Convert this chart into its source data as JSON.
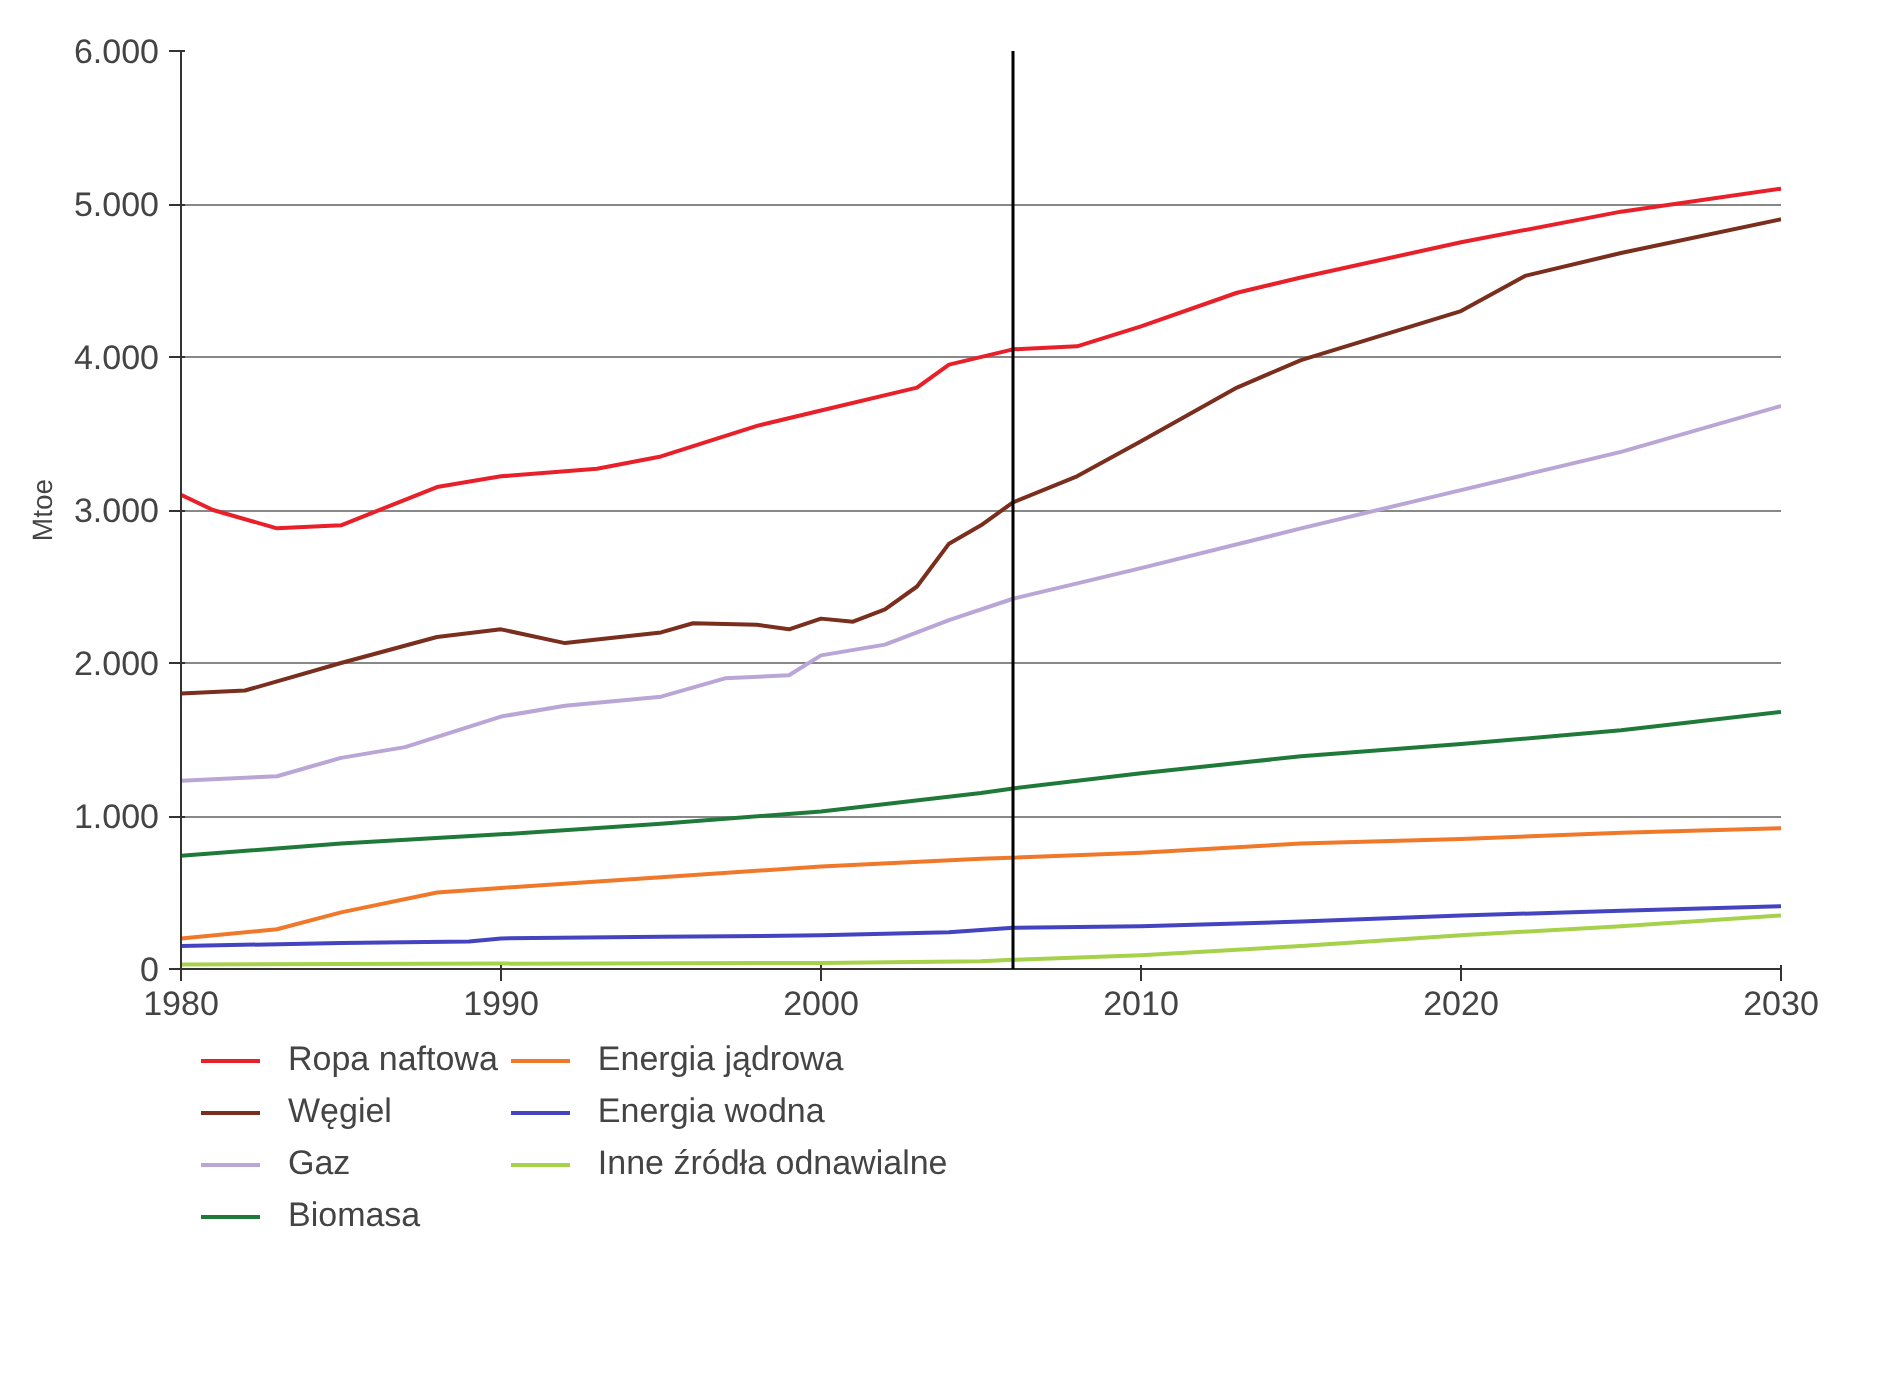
{
  "chart_data": {
    "type": "line",
    "ylabel": "Mtoe",
    "xlim": [
      1980,
      2030
    ],
    "xticks": [
      1980,
      1990,
      2000,
      2010,
      2020,
      2030
    ],
    "ylim": [
      0,
      6000
    ],
    "yticks": [
      {
        "value": 0,
        "label": "0"
      },
      {
        "value": 1000,
        "label": "1.000"
      },
      {
        "value": 2000,
        "label": "2.000"
      },
      {
        "value": 3000,
        "label": "3.000"
      },
      {
        "value": 4000,
        "label": "4.000"
      },
      {
        "value": 5000,
        "label": "5.000"
      },
      {
        "value": 6000,
        "label": "6.000"
      }
    ],
    "grid": "y",
    "legend": "bottom",
    "line_style": "solid",
    "ref_lines": [
      {
        "axis": "x",
        "value": 2006,
        "color": "#000000"
      }
    ],
    "series": [
      {
        "name": "Ropa naftowa",
        "color": "#e8202a",
        "x": [
          1980,
          1981,
          1983,
          1985,
          1988,
          1990,
          1993,
          1995,
          1998,
          2000,
          2003,
          2004,
          2006,
          2008,
          2010,
          2013,
          2015,
          2020,
          2025,
          2030
        ],
        "values": [
          3100,
          3000,
          2880,
          2900,
          3150,
          3220,
          3270,
          3350,
          3550,
          3650,
          3800,
          3950,
          4050,
          4070,
          4200,
          4420,
          4520,
          4750,
          4950,
          5100
        ]
      },
      {
        "name": "Węgiel",
        "color": "#7a2e1e",
        "x": [
          1980,
          1982,
          1985,
          1988,
          1990,
          1992,
          1995,
          1996,
          1998,
          1999,
          2000,
          2001,
          2002,
          2003,
          2004,
          2005,
          2006,
          2008,
          2010,
          2013,
          2015,
          2020,
          2022,
          2025,
          2030
        ],
        "values": [
          1800,
          1820,
          2000,
          2170,
          2220,
          2130,
          2200,
          2260,
          2250,
          2220,
          2290,
          2270,
          2350,
          2500,
          2780,
          2900,
          3050,
          3220,
          3450,
          3800,
          3980,
          4300,
          4530,
          4680,
          4900
        ]
      },
      {
        "name": "Gaz",
        "color": "#b9a6d6",
        "x": [
          1980,
          1983,
          1985,
          1987,
          1990,
          1992,
          1995,
          1997,
          1999,
          2000,
          2002,
          2004,
          2006,
          2010,
          2015,
          2020,
          2025,
          2030
        ],
        "values": [
          1230,
          1260,
          1380,
          1450,
          1650,
          1720,
          1780,
          1900,
          1920,
          2050,
          2120,
          2280,
          2420,
          2620,
          2880,
          3130,
          3380,
          3680
        ]
      },
      {
        "name": "Biomasa",
        "color": "#1f7a3a",
        "x": [
          1980,
          1985,
          1990,
          1995,
          2000,
          2005,
          2006,
          2010,
          2015,
          2020,
          2025,
          2030
        ],
        "values": [
          740,
          820,
          880,
          950,
          1030,
          1150,
          1180,
          1280,
          1390,
          1470,
          1560,
          1680
        ]
      },
      {
        "name": "Energia jądrowa",
        "color": "#f0782a",
        "x": [
          1980,
          1983,
          1985,
          1988,
          1990,
          1995,
          2000,
          2005,
          2010,
          2015,
          2020,
          2025,
          2030
        ],
        "values": [
          200,
          260,
          370,
          500,
          530,
          600,
          670,
          720,
          760,
          820,
          850,
          890,
          920
        ]
      },
      {
        "name": "Energia wodna",
        "color": "#4444c0",
        "x": [
          1980,
          1985,
          1989,
          1990,
          1995,
          2000,
          2004,
          2006,
          2010,
          2015,
          2020,
          2025,
          2030
        ],
        "values": [
          150,
          170,
          180,
          200,
          210,
          220,
          240,
          270,
          280,
          310,
          350,
          380,
          410
        ]
      },
      {
        "name": "Inne źródła odnawialne",
        "color": "#a6d14a",
        "x": [
          1980,
          2000,
          2005,
          2006,
          2010,
          2015,
          2020,
          2025,
          2030
        ],
        "values": [
          30,
          40,
          50,
          60,
          90,
          150,
          220,
          280,
          350
        ]
      }
    ]
  }
}
